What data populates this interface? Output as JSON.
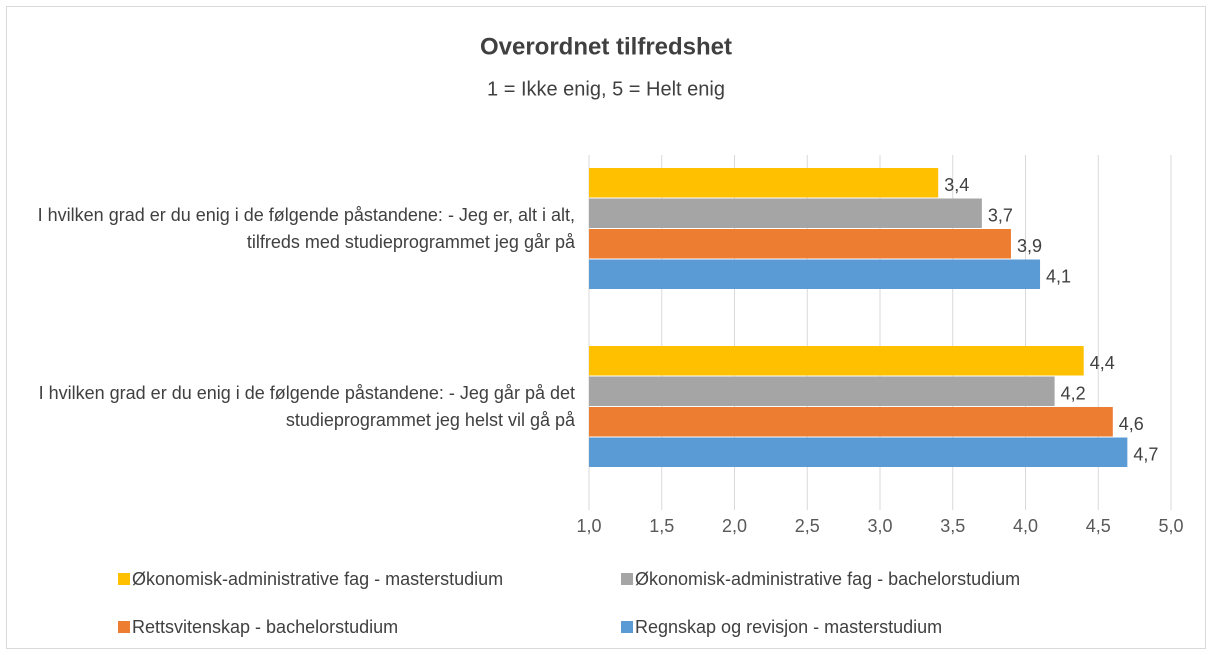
{
  "chart_data": {
    "type": "barh",
    "title": "Overordnet tilfredshet",
    "subtitle": "1 = Ikke enig, 5 = Helt enig",
    "categories": [
      "I hvilken grad er du enig i de følgende påstandene: - Jeg er, alt i alt, tilfreds med studieprogrammet jeg går på",
      "I hvilken grad er du enig i de følgende påstandene: - Jeg går på det studieprogrammet jeg helst vil gå på"
    ],
    "series": [
      {
        "name": "Økonomisk-administrative fag - masterstudium",
        "color": "#ffc000",
        "values": [
          3.4,
          4.4
        ],
        "value_labels": [
          "3,4",
          "4,4"
        ]
      },
      {
        "name": "Økonomisk-administrative fag - bachelorstudium",
        "color": "#a5a5a5",
        "values": [
          3.7,
          4.2
        ],
        "value_labels": [
          "3,7",
          "4,2"
        ]
      },
      {
        "name": "Rettsvitenskap - bachelorstudium",
        "color": "#ed7d31",
        "values": [
          3.9,
          4.6
        ],
        "value_labels": [
          "3,9",
          "4,6"
        ]
      },
      {
        "name": "Regnskap og revisjon - masterstudium",
        "color": "#5b9bd5",
        "values": [
          4.1,
          4.7
        ],
        "value_labels": [
          "4,1",
          "4,7"
        ]
      }
    ],
    "xlim": [
      1,
      5
    ],
    "xticks": [
      {
        "value": 1,
        "label": "1,0"
      },
      {
        "value": 1.5,
        "label": "1,5"
      },
      {
        "value": 2,
        "label": "2,0"
      },
      {
        "value": 2.5,
        "label": "2,5"
      },
      {
        "value": 3,
        "label": "3,0"
      },
      {
        "value": 3.5,
        "label": "3,5"
      },
      {
        "value": 4,
        "label": "4,0"
      },
      {
        "value": 4.5,
        "label": "4,5"
      },
      {
        "value": 5,
        "label": "5,0"
      }
    ],
    "grid": true,
    "legend": "bottom"
  }
}
